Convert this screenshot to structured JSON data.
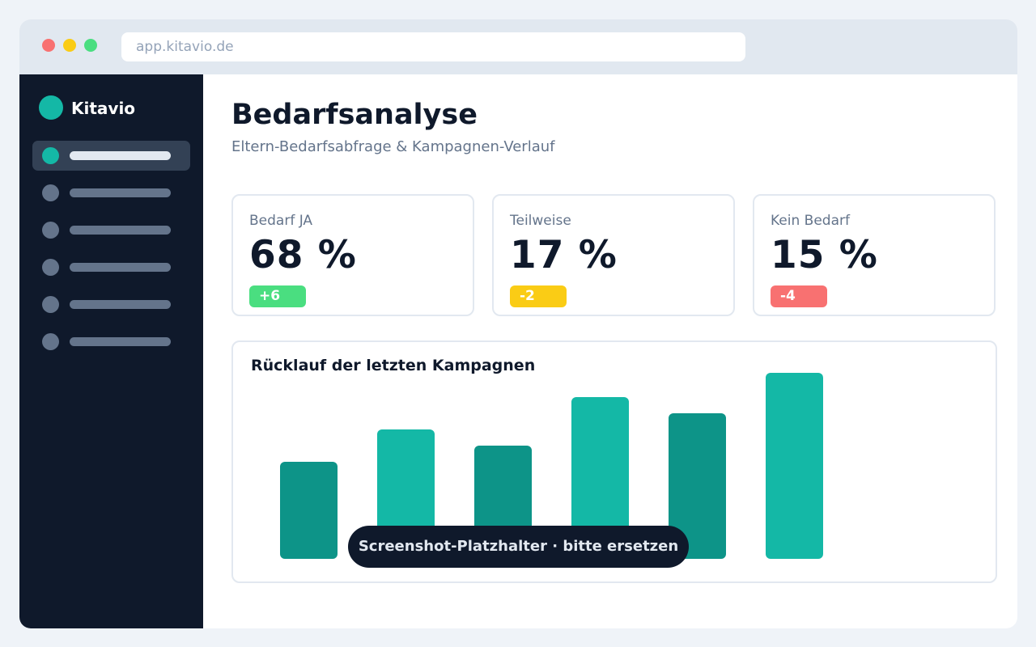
{
  "browser": {
    "url": "app.kitavio.de"
  },
  "sidebar": {
    "logo_text": "Kitavio",
    "active_index": 0,
    "item_count": 6
  },
  "page": {
    "title": "Bedarfsanalyse",
    "subtitle": "Eltern-Bedarfsabfrage & Kampagnen-Verlauf"
  },
  "stats": [
    {
      "label": "Bedarf JA",
      "value": "68 %",
      "delta": "+6",
      "color": "#4ade80"
    },
    {
      "label": "Teilweise",
      "value": "17 %",
      "delta": "-2",
      "color": "#facc15"
    },
    {
      "label": "Kein Bedarf",
      "value": "15 %",
      "delta": "-4",
      "color": "#f87171"
    }
  ],
  "chart": {
    "title": "Rücklauf der letzten Kampagnen"
  },
  "chart_data": {
    "type": "bar",
    "categories": [
      "",
      "",
      "",
      "",
      "",
      ""
    ],
    "values": [
      120,
      160,
      140,
      200,
      180,
      230
    ],
    "ylim": [
      0,
      230
    ],
    "grid": false,
    "colors": [
      "#0d9488",
      "#14b8a6",
      "#0d9488",
      "#14b8a6",
      "#0d9488",
      "#14b8a6"
    ]
  },
  "overlay": {
    "text": "Screenshot-Platzhalter · bitte ersetzen"
  },
  "colors": {
    "accent": "#14b8a6",
    "accent_dark": "#0d9488",
    "sidebar_bg": "#0f192b"
  }
}
